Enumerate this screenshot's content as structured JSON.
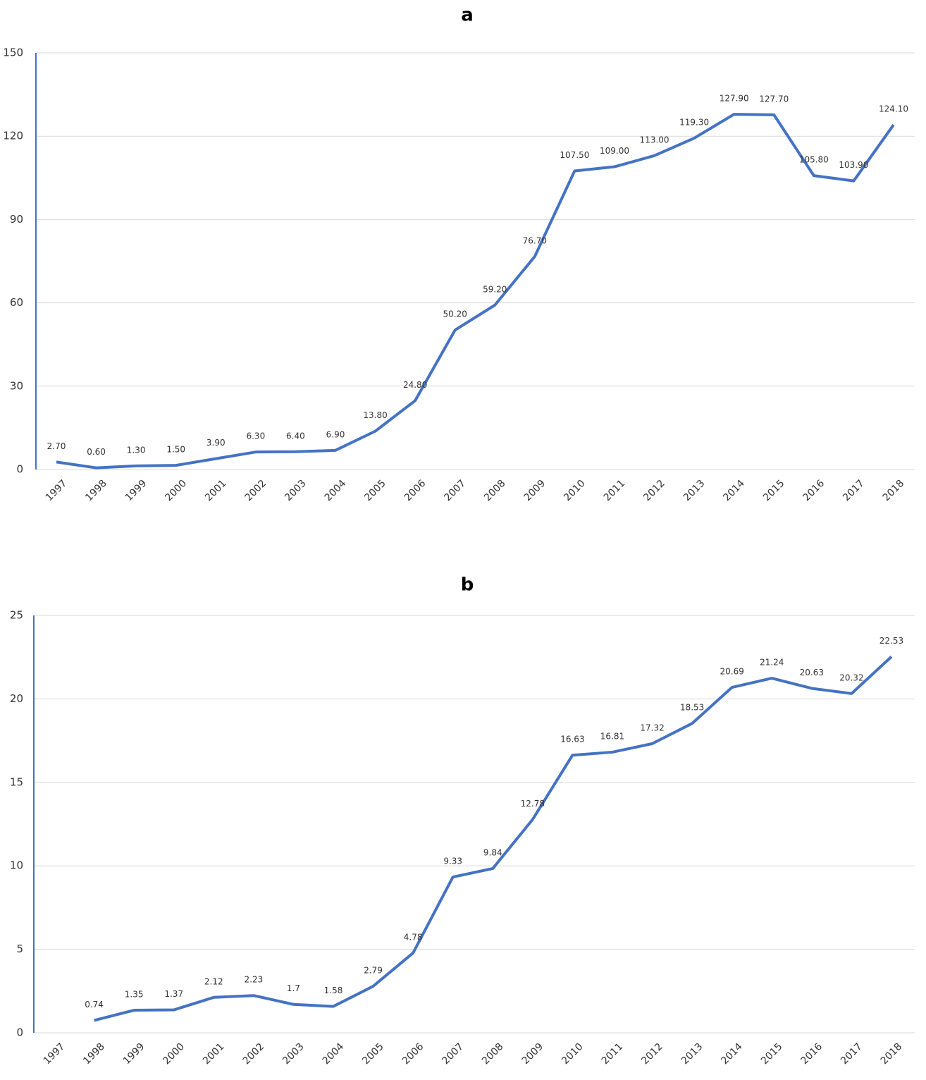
{
  "chart_data": [
    {
      "type": "line",
      "title": "a",
      "categories": [
        "1997",
        "1998",
        "1999",
        "2000",
        "2001",
        "2002",
        "2003",
        "2004",
        "2005",
        "2006",
        "2007",
        "2008",
        "2009",
        "2010",
        "2011",
        "2012",
        "2013",
        "2014",
        "2015",
        "2016",
        "2017",
        "2018"
      ],
      "values": [
        2.7,
        0.6,
        1.3,
        1.5,
        3.9,
        6.3,
        6.4,
        6.9,
        13.8,
        24.8,
        50.2,
        59.2,
        76.7,
        107.5,
        109,
        113,
        119.3,
        127.9,
        127.7,
        105.8,
        103.9,
        124.1
      ],
      "value_labels": [
        "2.70",
        "0.60",
        "1.30",
        "1.50",
        "3.90",
        "6.30",
        "6.40",
        "6.90",
        "13.80",
        "24.80",
        "50.20",
        "59.20",
        "76.70",
        "107.50",
        "109.00",
        "113.00",
        "119.30",
        "127.90",
        "127.70",
        "105.80",
        "103.90",
        "124.10"
      ],
      "color": "#4472c4",
      "ylim": [
        0,
        150
      ],
      "yticks": [
        0,
        30,
        60,
        90,
        120,
        150
      ],
      "grid": true
    },
    {
      "type": "line",
      "title": "b",
      "categories": [
        "1997",
        "1998",
        "1999",
        "2000",
        "2001",
        "2002",
        "2003",
        "2004",
        "2005",
        "2006",
        "2007",
        "2008",
        "2009",
        "2010",
        "2011",
        "2012",
        "2013",
        "2014",
        "2015",
        "2016",
        "2017",
        "2018"
      ],
      "values": [
        null,
        0.74,
        1.35,
        1.37,
        2.12,
        2.23,
        1.7,
        1.58,
        2.79,
        4.78,
        9.33,
        9.84,
        12.78,
        16.63,
        16.81,
        17.32,
        18.53,
        20.69,
        21.24,
        20.63,
        20.32,
        22.53
      ],
      "color": "#4472c4",
      "ylim": [
        0,
        25
      ],
      "yticks": [
        0,
        5,
        10,
        15,
        20,
        25
      ],
      "grid": true
    }
  ]
}
